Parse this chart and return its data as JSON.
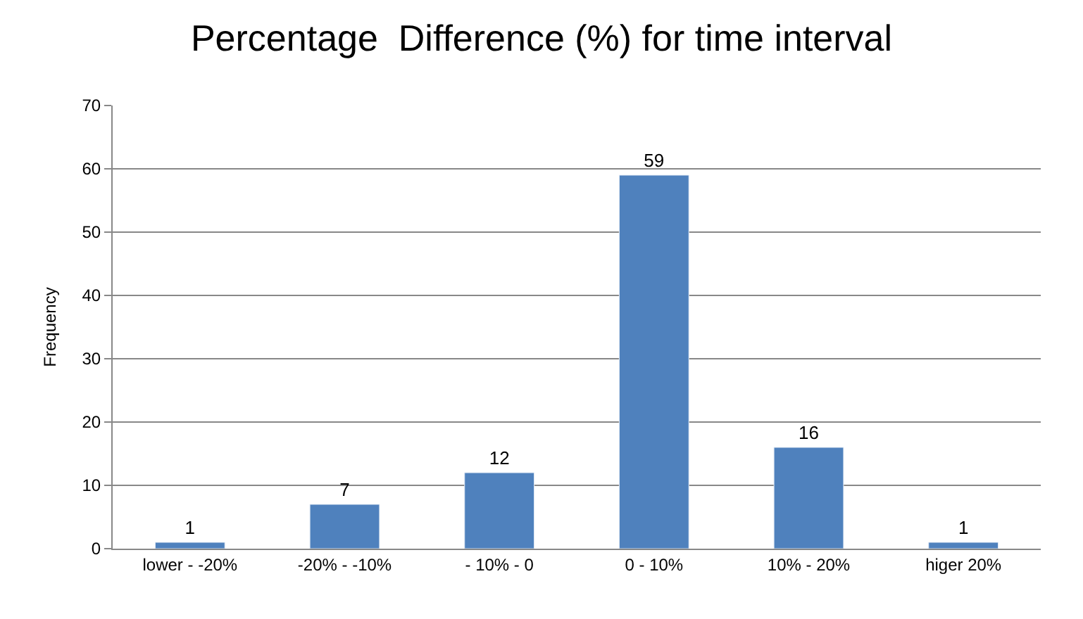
{
  "chart_data": {
    "type": "bar",
    "title": "Percentage  Difference (%) for time interval",
    "ylabel": "Frequency",
    "categories": [
      "lower - -20%",
      "-20% - -10%",
      "- 10% - 0",
      "0 - 10%",
      "10% - 20%",
      "higer 20%"
    ],
    "values": [
      1,
      7,
      12,
      59,
      16,
      1
    ],
    "color": "#4f81bd",
    "ylim": [
      0,
      70
    ],
    "yticks": [
      0,
      10,
      20,
      30,
      40,
      50,
      60,
      70
    ],
    "grid": "y",
    "data_labels": true
  }
}
